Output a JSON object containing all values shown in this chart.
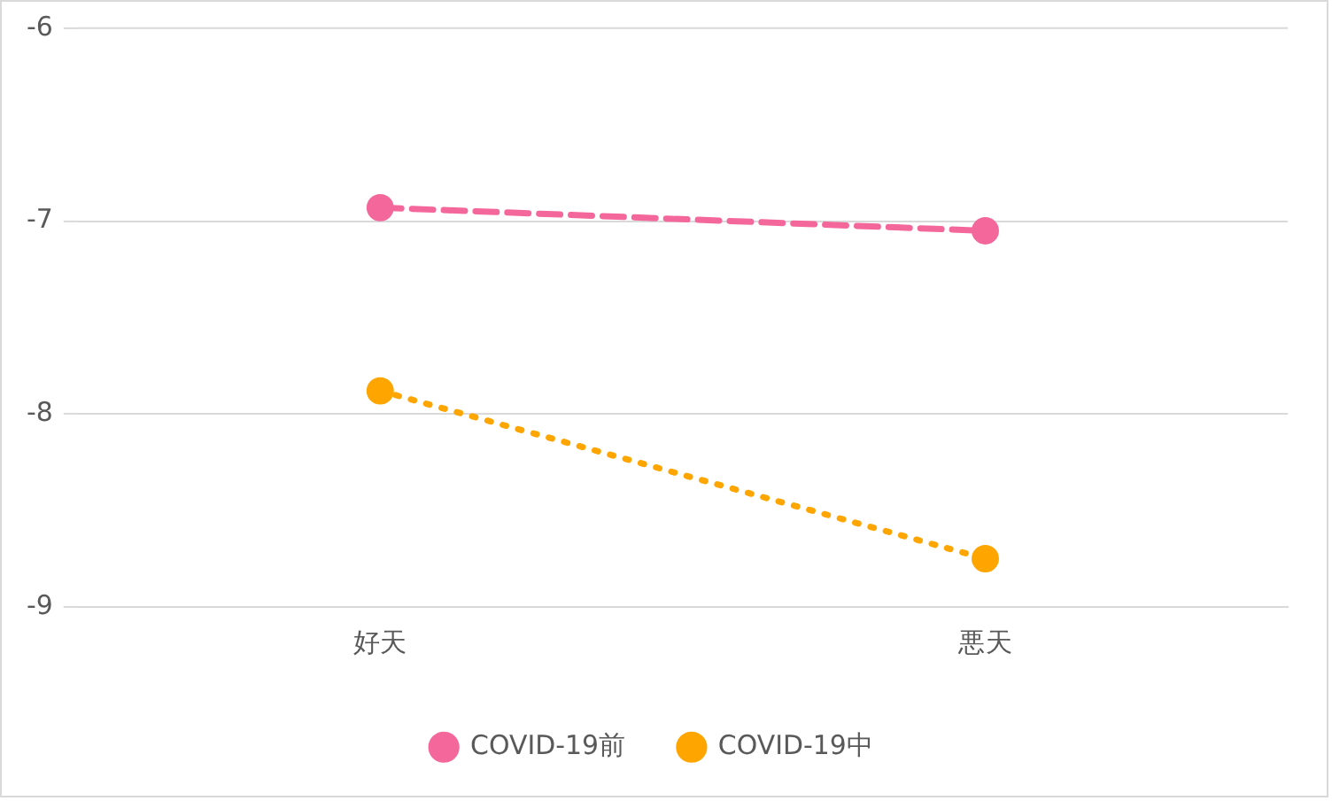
{
  "chart_data": {
    "type": "line",
    "categories": [
      "好天",
      "悪天"
    ],
    "series": [
      {
        "name": "COVID-19前",
        "color": "#f4679a",
        "values": [
          -6.93,
          -7.05
        ],
        "line_style": "dashed"
      },
      {
        "name": "COVID-19中",
        "color": "#ffa500",
        "values": [
          -7.88,
          -8.75
        ],
        "line_style": "dotted"
      }
    ],
    "ylim": [
      -9,
      -6
    ],
    "yticks": [
      -9,
      -8,
      -7,
      -6
    ],
    "grid": "y",
    "legend": "bottom",
    "marker": "circle"
  }
}
